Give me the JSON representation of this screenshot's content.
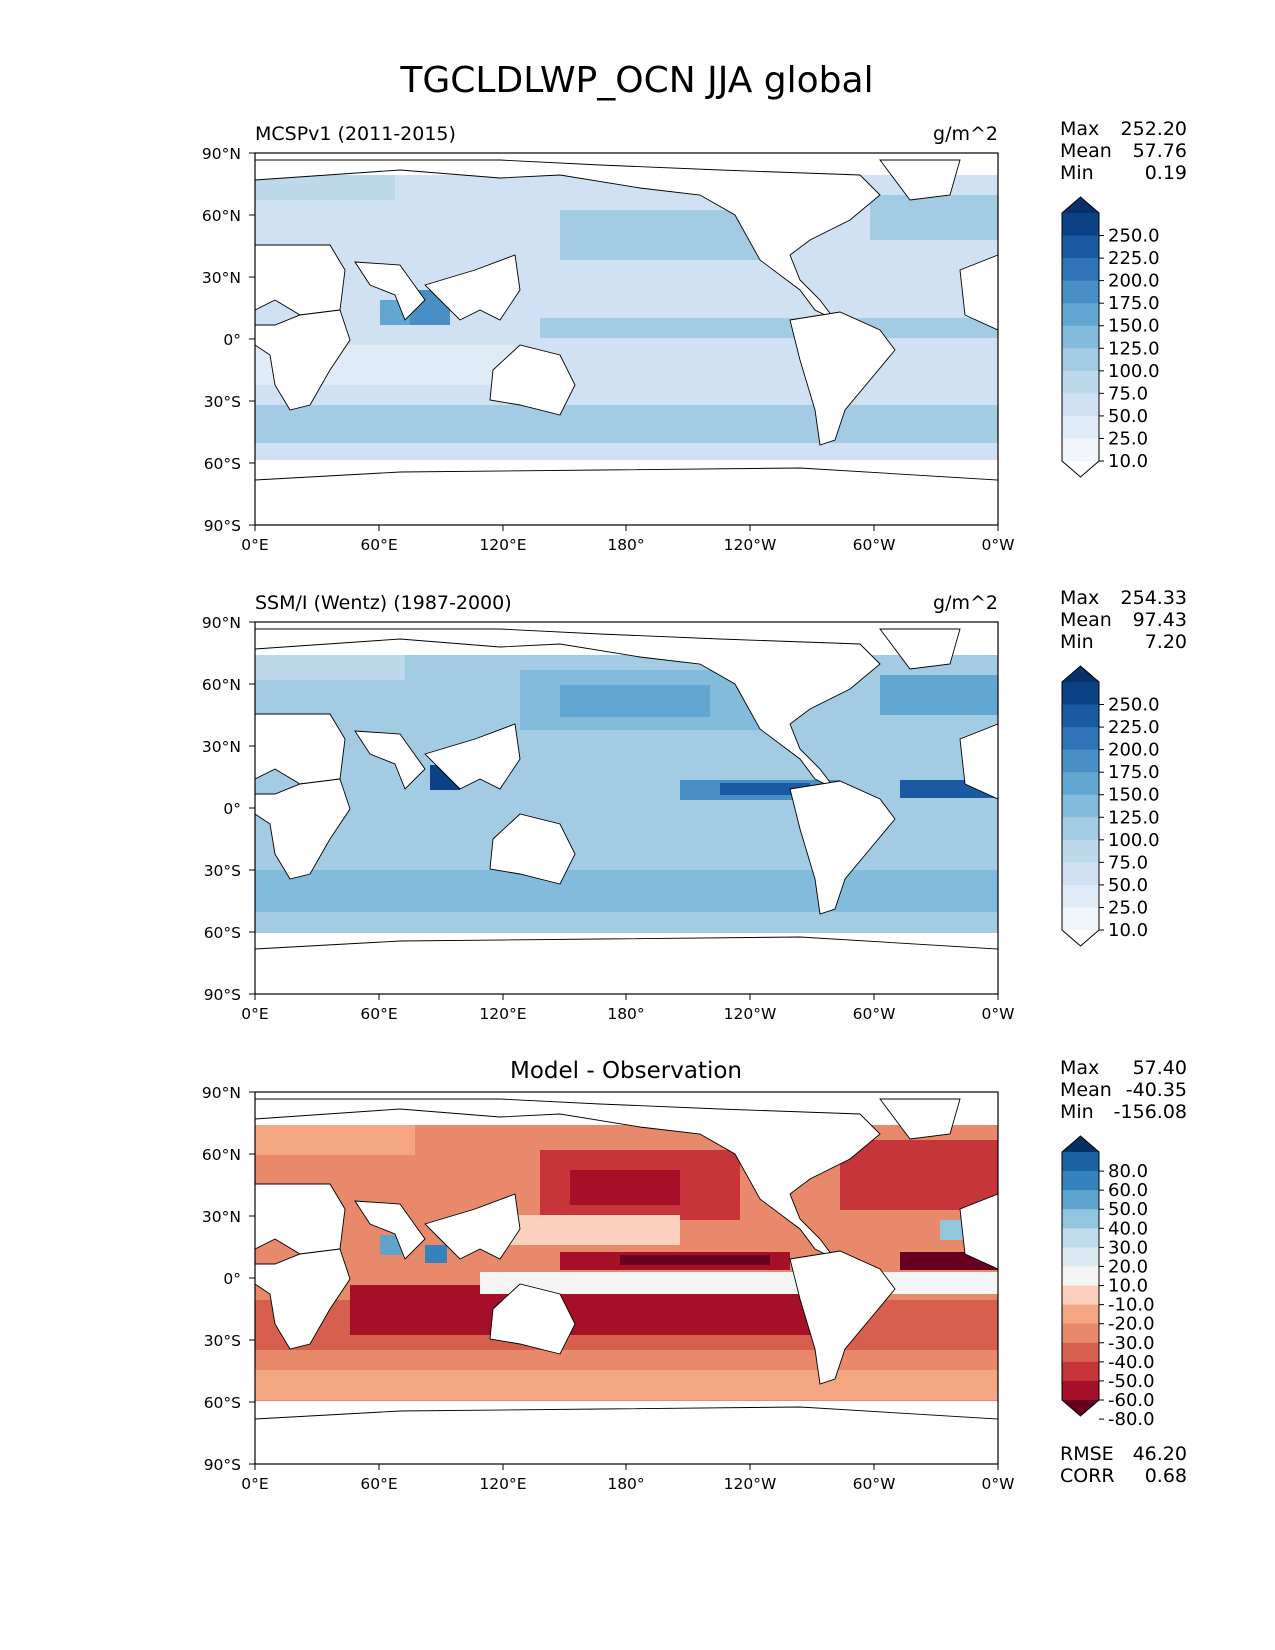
{
  "figure": {
    "title": "TGCLDLWP_OCN JJA global"
  },
  "axes": {
    "lat_ticks": [
      "90°N",
      "60°N",
      "30°N",
      "0°",
      "30°S",
      "60°S",
      "90°S"
    ],
    "lon_ticks": [
      "0°E",
      "60°E",
      "120°E",
      "180°",
      "120°W",
      "60°W",
      "0°W"
    ]
  },
  "panels": [
    {
      "left_title": "MCSPv1 (2011-2015)",
      "center_title": "",
      "right_title": "g/m^2",
      "stats": [
        {
          "label": "Max",
          "value": "252.20"
        },
        {
          "label": "Mean",
          "value": "57.76"
        },
        {
          "label": "Min",
          "value": "0.19"
        }
      ],
      "colorbar_labels": [
        "250.0",
        "225.0",
        "200.0",
        "175.0",
        "150.0",
        "125.0",
        "100.0",
        "75.0",
        "50.0",
        "25.0",
        "10.0"
      ],
      "colormap": "blues",
      "footer_stats": []
    },
    {
      "left_title": "SSM/I (Wentz) (1987-2000)",
      "center_title": "",
      "right_title": "g/m^2",
      "stats": [
        {
          "label": "Max",
          "value": "254.33"
        },
        {
          "label": "Mean",
          "value": "97.43"
        },
        {
          "label": "Min",
          "value": "7.20"
        }
      ],
      "colorbar_labels": [
        "250.0",
        "225.0",
        "200.0",
        "175.0",
        "150.0",
        "125.0",
        "100.0",
        "75.0",
        "50.0",
        "25.0",
        "10.0"
      ],
      "colormap": "blues",
      "footer_stats": []
    },
    {
      "left_title": "",
      "center_title": "Model - Observation",
      "right_title": "",
      "stats": [
        {
          "label": "Max",
          "value": "57.40"
        },
        {
          "label": "Mean",
          "value": "-40.35"
        },
        {
          "label": "Min",
          "value": "-156.08"
        }
      ],
      "colorbar_labels": [
        "80.0",
        "60.0",
        "50.0",
        "40.0",
        "30.0",
        "20.0",
        "10.0",
        "-10.0",
        "-20.0",
        "-30.0",
        "-40.0",
        "-50.0",
        "-60.0",
        "-80.0"
      ],
      "colormap": "rdbu",
      "footer_stats": [
        {
          "label": "RMSE",
          "value": "46.20"
        },
        {
          "label": "CORR",
          "value": "0.68"
        }
      ]
    }
  ],
  "chart_data": [
    {
      "type": "heatmap",
      "title": "MCSPv1 (2011-2015)",
      "units": "g/m^2",
      "xlim": [
        0,
        360
      ],
      "ylim": [
        -90,
        90
      ],
      "colorbar_levels": [
        10,
        25,
        50,
        75,
        100,
        125,
        150,
        175,
        200,
        225,
        250
      ],
      "colors": [
        "#ffffff",
        "#f0f6fc",
        "#dfebf7",
        "#cfe1f2",
        "#bed8ec",
        "#a3cbe3",
        "#82bbdb",
        "#62a7d2",
        "#478fc5",
        "#2f74b6",
        "#1a5aa3",
        "#0b4285",
        "#08306b"
      ],
      "fields": [
        {
          "lon": [
            0,
            360
          ],
          "lat": [
            -58,
            78
          ],
          "level": 3
        },
        {
          "lon": [
            0,
            360
          ],
          "lat": [
            -52,
            -38
          ],
          "level": 4
        },
        {
          "lon": [
            140,
            360
          ],
          "lat": [
            2,
            12
          ],
          "level": 5
        },
        {
          "lon": [
            60,
            95
          ],
          "lat": [
            5,
            22
          ],
          "level": 7
        },
        {
          "lon": [
            130,
            230
          ],
          "lat": [
            35,
            58
          ],
          "level": 4
        },
        {
          "lon": [
            300,
            350
          ],
          "lat": [
            45,
            65
          ],
          "level": 5
        }
      ],
      "stats": {
        "max": 252.2,
        "mean": 57.76,
        "min": 0.19
      }
    },
    {
      "type": "heatmap",
      "title": "SSM/I (Wentz) (1987-2000)",
      "units": "g/m^2",
      "xlim": [
        0,
        360
      ],
      "ylim": [
        -90,
        90
      ],
      "colorbar_levels": [
        10,
        25,
        50,
        75,
        100,
        125,
        150,
        175,
        200,
        225,
        250
      ],
      "colors": [
        "#ffffff",
        "#f0f6fc",
        "#dfebf7",
        "#cfe1f2",
        "#bed8ec",
        "#a3cbe3",
        "#82bbdb",
        "#62a7d2",
        "#478fc5",
        "#2f74b6",
        "#1a5aa3",
        "#0b4285",
        "#08306b"
      ],
      "fields": [
        {
          "lon": [
            0,
            360
          ],
          "lat": [
            -60,
            74
          ],
          "level": 5
        },
        {
          "lon": [
            0,
            360
          ],
          "lat": [
            -55,
            -35
          ],
          "level": 6
        },
        {
          "lon": [
            140,
            230
          ],
          "lat": [
            30,
            58
          ],
          "level": 7
        },
        {
          "lon": [
            180,
            270
          ],
          "lat": [
            2,
            10
          ],
          "level": 9
        },
        {
          "lon": [
            300,
            350
          ],
          "lat": [
            4,
            10
          ],
          "level": 9
        },
        {
          "lon": [
            300,
            350
          ],
          "lat": [
            45,
            65
          ],
          "level": 7
        }
      ],
      "stats": {
        "max": 254.33,
        "mean": 97.43,
        "min": 7.2
      }
    },
    {
      "type": "heatmap",
      "title": "Model - Observation",
      "xlim": [
        0,
        360
      ],
      "ylim": [
        -90,
        90
      ],
      "colorbar_levels": [
        -80,
        -60,
        -50,
        -40,
        -30,
        -20,
        -10,
        10,
        20,
        30,
        40,
        50,
        60,
        80
      ],
      "colors": [
        "#67001f",
        "#a50f28",
        "#c5353a",
        "#d6604d",
        "#e8896b",
        "#f4a582",
        "#fbd1bd",
        "#f5f5f5",
        "#dbe9f3",
        "#c0dbeb",
        "#92c5de",
        "#5fa4cc",
        "#3582bc",
        "#1c63a4",
        "#053061"
      ],
      "fields": [
        {
          "lon": [
            0,
            360
          ],
          "lat": [
            -58,
            74
          ],
          "level": 4
        },
        {
          "lon": [
            0,
            360
          ],
          "lat": [
            -45,
            -20
          ],
          "level": 2
        },
        {
          "lon": [
            130,
            230
          ],
          "lat": [
            35,
            55
          ],
          "level": 2
        },
        {
          "lon": [
            150,
            270
          ],
          "lat": [
            2,
            10
          ],
          "level": 1
        },
        {
          "lon": [
            120,
            360
          ],
          "lat": [
            -5,
            2
          ],
          "level": 7
        },
        {
          "lon": [
            60,
            100
          ],
          "lat": [
            10,
            20
          ],
          "level": 10
        }
      ],
      "stats": {
        "max": 57.4,
        "mean": -40.35,
        "min": -156.08,
        "rmse": 46.2,
        "corr": 0.68
      }
    }
  ]
}
